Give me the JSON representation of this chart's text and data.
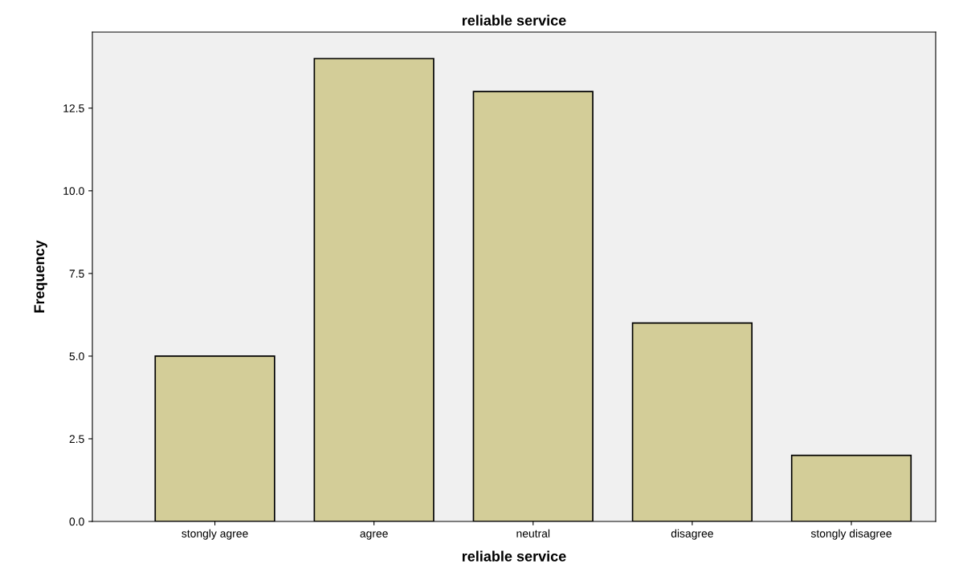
{
  "chart_data": {
    "type": "bar",
    "title": "reliable service",
    "xlabel": "reliable service",
    "ylabel": "Frequency",
    "categories": [
      "stongly agree",
      "agree",
      "neutral",
      "disagree",
      "stongly disagree"
    ],
    "values": [
      5,
      14,
      13,
      6,
      2
    ],
    "color": "#d3cd98",
    "ylim": [
      0,
      14.8
    ],
    "yticks": [
      {
        "value": 0,
        "label": "0.0"
      },
      {
        "value": 2.5,
        "label": "2.5"
      },
      {
        "value": 5,
        "label": "5.0"
      },
      {
        "value": 7.5,
        "label": "7.5"
      },
      {
        "value": 10,
        "label": "10.0"
      },
      {
        "value": 12.5,
        "label": "12.5"
      }
    ],
    "grid": false,
    "legend": false
  }
}
